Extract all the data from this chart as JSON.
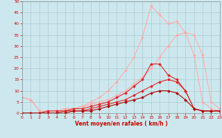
{
  "background_color": "#cce8ee",
  "grid_color": "#aacccc",
  "xlabel": "Vent moyen/en rafales ( km/h )",
  "xlim": [
    0,
    23
  ],
  "ylim": [
    0,
    50
  ],
  "xticks": [
    0,
    1,
    2,
    3,
    4,
    5,
    6,
    7,
    8,
    9,
    10,
    11,
    12,
    13,
    14,
    15,
    16,
    17,
    18,
    19,
    20,
    21,
    22,
    23
  ],
  "yticks": [
    0,
    5,
    10,
    15,
    20,
    25,
    30,
    35,
    40,
    45,
    50
  ],
  "series": [
    {
      "x": [
        0,
        1,
        2,
        3,
        4,
        5,
        6,
        7,
        8,
        9,
        10,
        11,
        12,
        13,
        14,
        15,
        16,
        17,
        18,
        19,
        20,
        21,
        22,
        23
      ],
      "y": [
        7,
        6,
        1,
        1,
        1,
        2,
        2,
        3,
        4,
        5,
        6,
        8,
        10,
        13,
        16,
        20,
        25,
        30,
        35,
        36,
        35,
        26,
        5,
        2
      ],
      "color": "#ffaaaa",
      "marker": "D",
      "markersize": 2,
      "linewidth": 0.8
    },
    {
      "x": [
        0,
        1,
        2,
        3,
        4,
        5,
        6,
        7,
        8,
        9,
        10,
        11,
        12,
        13,
        14,
        15,
        16,
        17,
        18,
        19,
        20,
        21,
        22,
        23
      ],
      "y": [
        7,
        6,
        1,
        1,
        1,
        2,
        2,
        3,
        5,
        7,
        10,
        14,
        19,
        25,
        34,
        48,
        44,
        40,
        41,
        36,
        26,
        5,
        2,
        1
      ],
      "color": "#ffaaaa",
      "marker": "D",
      "markersize": 2,
      "linewidth": 0.8
    },
    {
      "x": [
        0,
        1,
        2,
        3,
        4,
        5,
        6,
        7,
        8,
        9,
        10,
        11,
        12,
        13,
        14,
        15,
        16,
        17,
        18,
        19,
        20,
        21,
        22,
        23
      ],
      "y": [
        0,
        0,
        0,
        1,
        1,
        1,
        2,
        2,
        3,
        4,
        5,
        7,
        9,
        12,
        15,
        22,
        22,
        17,
        15,
        10,
        2,
        1,
        1,
        1
      ],
      "color": "#dd2222",
      "marker": "D",
      "markersize": 2,
      "linewidth": 0.8
    },
    {
      "x": [
        0,
        1,
        2,
        3,
        4,
        5,
        6,
        7,
        8,
        9,
        10,
        11,
        12,
        13,
        14,
        15,
        16,
        17,
        18,
        19,
        20,
        21,
        22,
        23
      ],
      "y": [
        0,
        0,
        0,
        0,
        0,
        1,
        1,
        1,
        2,
        3,
        4,
        5,
        6,
        8,
        10,
        12,
        14,
        15,
        14,
        10,
        2,
        1,
        1,
        1
      ],
      "color": "#dd2222",
      "marker": "D",
      "markersize": 2,
      "linewidth": 0.8
    },
    {
      "x": [
        0,
        1,
        2,
        3,
        4,
        5,
        6,
        7,
        8,
        9,
        10,
        11,
        12,
        13,
        14,
        15,
        16,
        17,
        18,
        19,
        20,
        21,
        22,
        23
      ],
      "y": [
        0,
        0,
        0,
        0,
        0,
        0,
        1,
        1,
        1,
        2,
        3,
        4,
        5,
        6,
        7,
        9,
        10,
        10,
        9,
        6,
        2,
        1,
        1,
        1
      ],
      "color": "#aa0000",
      "marker": "D",
      "markersize": 2,
      "linewidth": 0.8
    }
  ]
}
